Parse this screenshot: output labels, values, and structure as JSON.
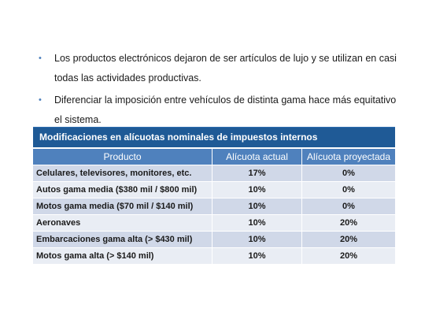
{
  "bullets": [
    {
      "line1": "Los productos electrónicos dejaron de ser artículos de lujo y se utilizan en casi",
      "line2": "todas las actividades productivas."
    },
    {
      "line1": "Diferenciar la imposición entre vehículos de distinta gama hace más equitativo",
      "line2": "el sistema."
    }
  ],
  "table": {
    "caption": "Modificaciones en alícuotas nominales de impuestos internos",
    "headers": [
      "Producto",
      "Alícuota actual",
      "Alícuota proyectada"
    ],
    "rows": [
      [
        "Celulares, televisores, monitores, etc.",
        "17%",
        "0%"
      ],
      [
        "Autos gama media ($380 mil / $800 mil)",
        "10%",
        "0%"
      ],
      [
        "Motos gama media ($70 mil / $140 mil)",
        "10%",
        "0%"
      ],
      [
        "Aeronaves",
        "10%",
        "20%"
      ],
      [
        "Embarcaciones gama alta (> $430 mil)",
        "10%",
        "20%"
      ],
      [
        "Motos gama alta (> $140 mil)",
        "10%",
        "20%"
      ]
    ]
  },
  "colors": {
    "caption_bg": "#1f5a96",
    "header_bg": "#4f81bd",
    "row_odd": "#d0d8e8",
    "row_even": "#e9edf4",
    "bullet_color": "#4f81bd"
  }
}
